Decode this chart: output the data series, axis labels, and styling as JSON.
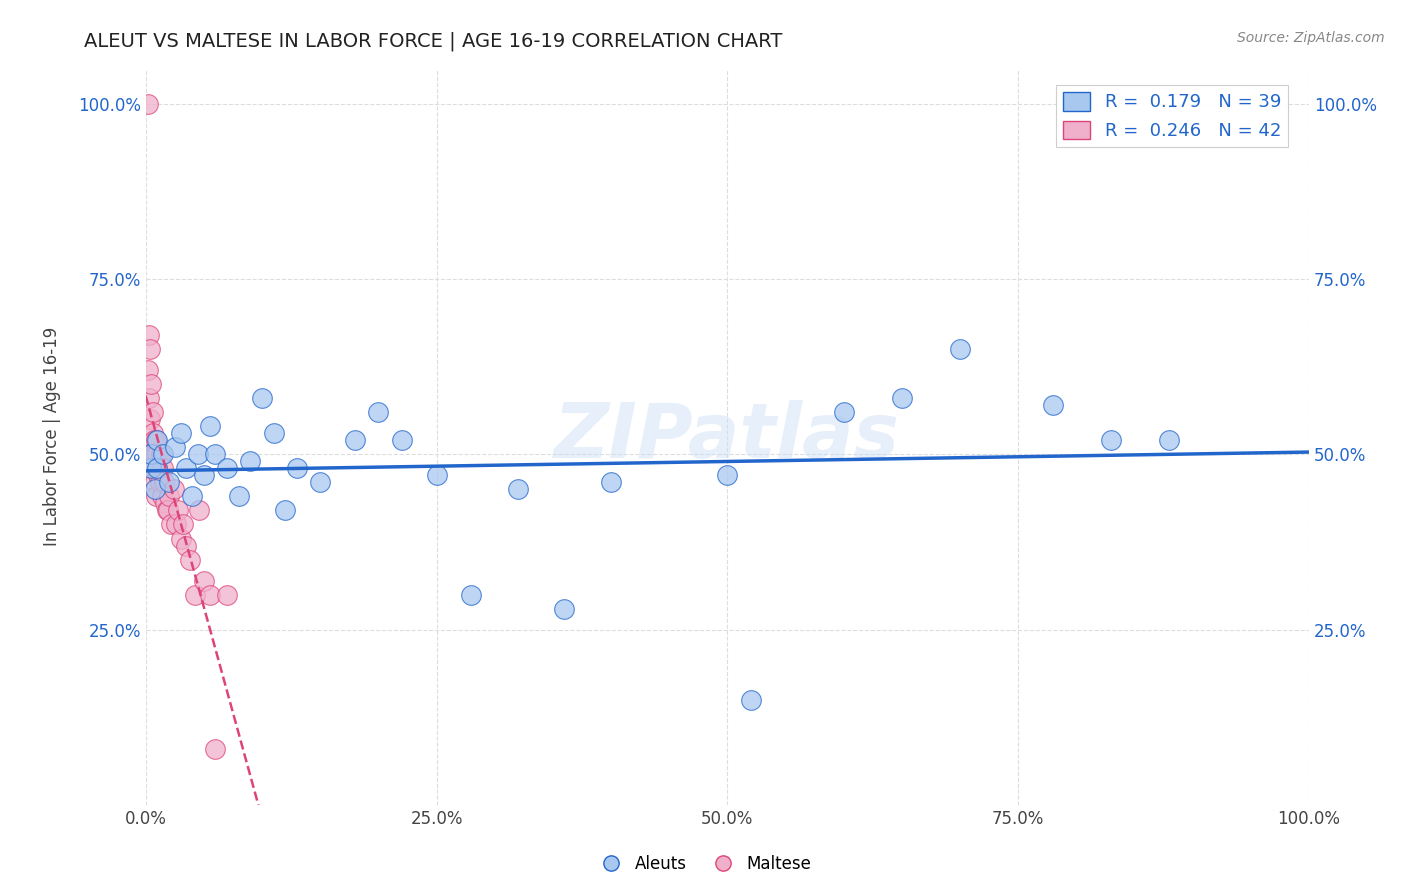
{
  "title": "ALEUT VS MALTESE IN LABOR FORCE | AGE 16-19 CORRELATION CHART",
  "source": "Source: ZipAtlas.com",
  "ylabel": "In Labor Force | Age 16-19",
  "xlim": [
    0,
    1.0
  ],
  "ylim": [
    0,
    1.05
  ],
  "xtick_labels": [
    "0.0%",
    "25.0%",
    "50.0%",
    "75.0%",
    "100.0%"
  ],
  "xtick_vals": [
    0.0,
    0.25,
    0.5,
    0.75,
    1.0
  ],
  "ytick_labels": [
    "25.0%",
    "50.0%",
    "75.0%",
    "100.0%"
  ],
  "ytick_vals": [
    0.25,
    0.5,
    0.75,
    1.0
  ],
  "aleuts_R": 0.179,
  "aleuts_N": 39,
  "maltese_R": 0.246,
  "maltese_N": 42,
  "aleuts_color": "#a8c8f0",
  "maltese_color": "#f0b0cc",
  "trendline_aleuts_color": "#2266cc",
  "trendline_maltese_color": "#dd4477",
  "legend_text_color": "#2266cc",
  "watermark": "ZIPatlas",
  "aleuts_x": [
    0.005,
    0.005,
    0.008,
    0.01,
    0.01,
    0.015,
    0.02,
    0.025,
    0.03,
    0.035,
    0.04,
    0.045,
    0.05,
    0.055,
    0.06,
    0.07,
    0.08,
    0.09,
    0.1,
    0.11,
    0.12,
    0.13,
    0.15,
    0.18,
    0.2,
    0.22,
    0.25,
    0.28,
    0.32,
    0.36,
    0.4,
    0.5,
    0.52,
    0.6,
    0.65,
    0.7,
    0.78,
    0.83,
    0.88
  ],
  "aleuts_y": [
    0.48,
    0.5,
    0.45,
    0.52,
    0.48,
    0.5,
    0.46,
    0.51,
    0.53,
    0.48,
    0.44,
    0.5,
    0.47,
    0.54,
    0.5,
    0.48,
    0.44,
    0.49,
    0.58,
    0.53,
    0.42,
    0.48,
    0.46,
    0.52,
    0.56,
    0.52,
    0.47,
    0.3,
    0.45,
    0.28,
    0.46,
    0.47,
    0.15,
    0.56,
    0.58,
    0.65,
    0.57,
    0.52,
    0.52
  ],
  "maltese_x": [
    0.002,
    0.002,
    0.003,
    0.003,
    0.004,
    0.004,
    0.005,
    0.005,
    0.006,
    0.006,
    0.007,
    0.007,
    0.008,
    0.008,
    0.009,
    0.009,
    0.01,
    0.01,
    0.011,
    0.012,
    0.013,
    0.014,
    0.015,
    0.016,
    0.017,
    0.018,
    0.019,
    0.02,
    0.022,
    0.024,
    0.026,
    0.028,
    0.03,
    0.032,
    0.035,
    0.038,
    0.042,
    0.046,
    0.05,
    0.055,
    0.06,
    0.07
  ],
  "maltese_y": [
    1.0,
    0.62,
    0.67,
    0.58,
    0.65,
    0.55,
    0.6,
    0.5,
    0.56,
    0.53,
    0.52,
    0.48,
    0.5,
    0.46,
    0.52,
    0.44,
    0.5,
    0.48,
    0.47,
    0.46,
    0.5,
    0.44,
    0.48,
    0.46,
    0.43,
    0.42,
    0.42,
    0.44,
    0.4,
    0.45,
    0.4,
    0.42,
    0.38,
    0.4,
    0.37,
    0.35,
    0.3,
    0.42,
    0.32,
    0.3,
    0.08,
    0.3
  ]
}
